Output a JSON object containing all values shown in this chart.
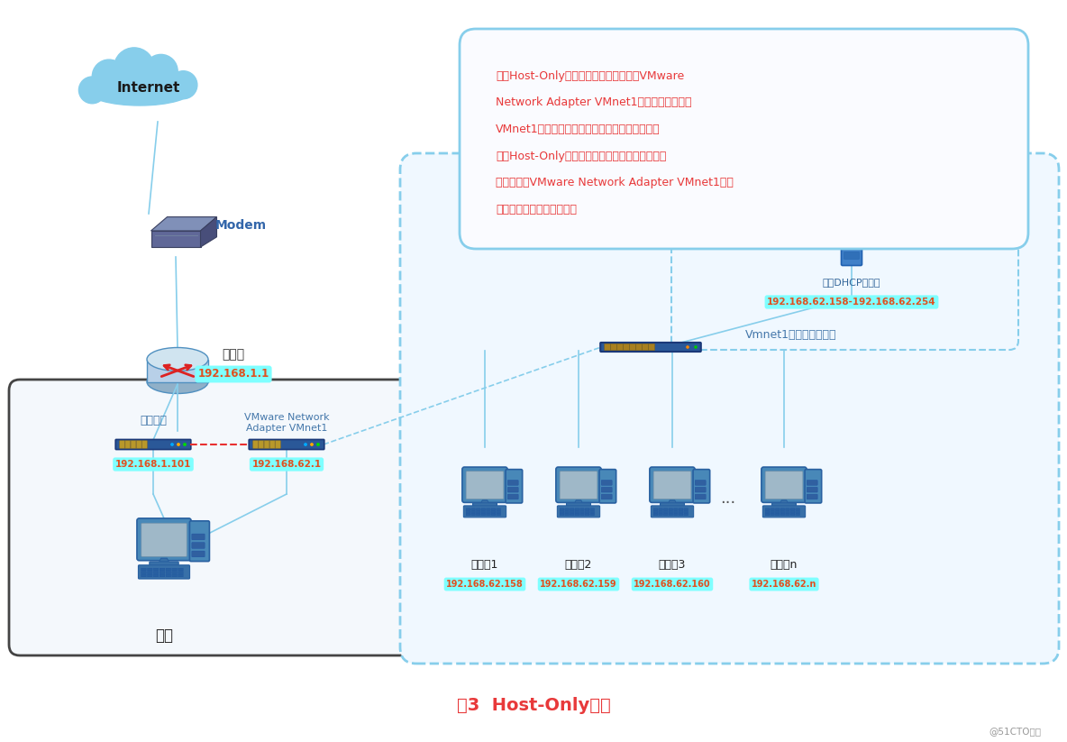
{
  "title": "图3  Host-Only模式",
  "title_color": "#e8393a",
  "bg_color": "#ffffff",
  "note_lines": [
    "注：Host-Only模式通过主机的虚拟网卡VMware",
    "Network Adapter VMnet1来连接虚拟交换机",
    "VMnet1，从而达到与虚拟机通信的目的。如果想",
    "要在Host-Only模式下联网，可以将能联网的主机",
    "网卡共享给VMware Network Adapter VMnet1，这",
    "样就可以实现虚拟机联网。"
  ],
  "note_text_color": "#e8393a",
  "note_box_edge": "#87ceeb",
  "internet_label": "Internet",
  "modem_label": "Modem",
  "router_label": "路由器",
  "router_ip": "192.168.1.1",
  "host_nic_label": "主机网卡",
  "host_nic_ip": "192.168.1.101",
  "vmnet_adapter_label_line1": "VMware Network",
  "vmnet_adapter_label_line2": "Adapter VMnet1",
  "vmnet_adapter_ip": "192.168.62.1",
  "host_label": "主机",
  "vmnet1_label": "Vmnet1（虚拟交换机）",
  "dhcp_label": "虚拟DHCP服务器",
  "dhcp_ip": "192.168.62.158-192.168.62.254",
  "vm_labels": [
    "虚拟机1",
    "虚拟机2",
    "虚拟机3",
    "虚拟机n"
  ],
  "vm_ips": [
    "192.168.62.158",
    "192.168.62.159",
    "192.168.62.160",
    "192.168.62.n"
  ],
  "ip_bg_color": "#7fffff",
  "ip_text_color": "#e05020",
  "line_color": "#87ceeb",
  "dashed_red": "#e83030",
  "watermark": "@51CTO博客",
  "cloud_color": "#87ceeb",
  "modem_color_top": "#7080a8",
  "modem_color_side": "#5060a0",
  "router_body": "#b8d0e8",
  "router_top": "#d0e4f0",
  "router_bottom": "#90b0c8",
  "nic_color": "#3060a0",
  "switch_color": "#3060a0",
  "server_color": "#4080c0",
  "computer_monitor": "#4888b8",
  "computer_screen": "#a8b8c8",
  "computer_case": "#4888b8",
  "computer_kbd": "#3870a8",
  "host_box_edge": "#444444",
  "host_box_face": "#f4f8fc",
  "vmnet_box_edge": "#87ceeb",
  "vmnet_box_face": "#f0f8ff",
  "dhcp_inner_edge": "#87ceeb"
}
